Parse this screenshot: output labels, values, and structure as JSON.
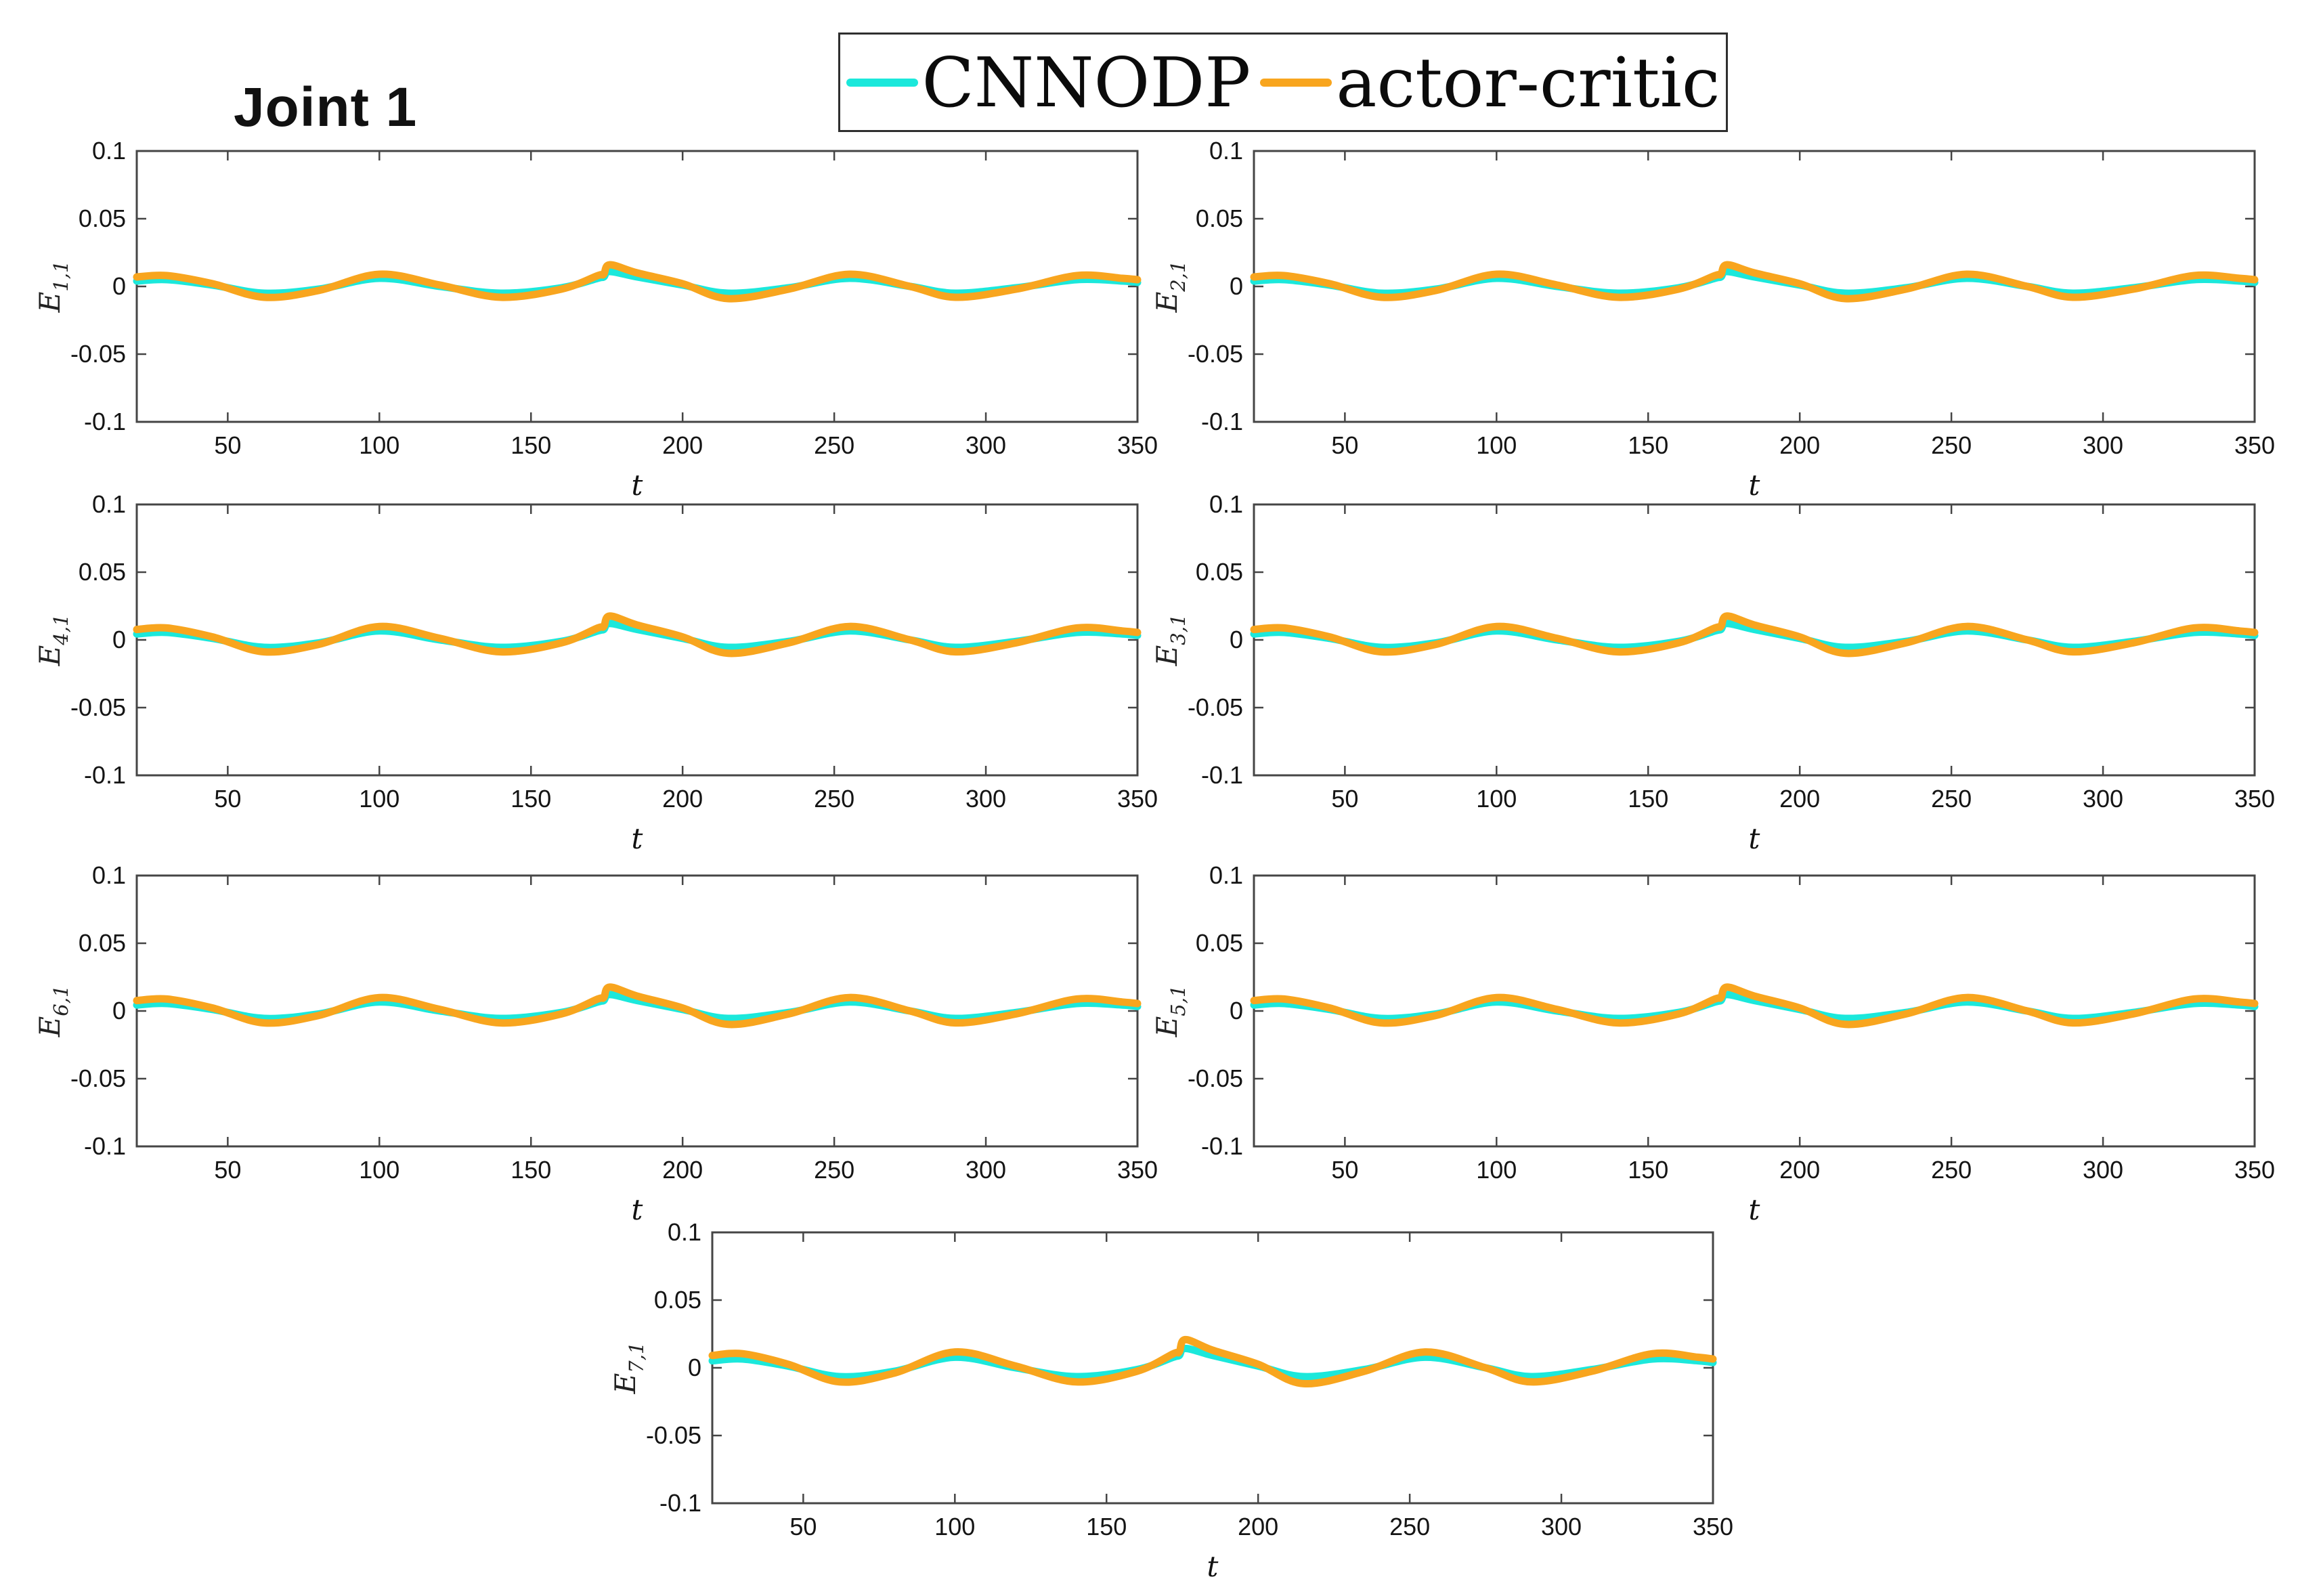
{
  "title": "Joint 1",
  "legend": {
    "items": [
      {
        "label": "CNNODP",
        "color": "#1BE8DB"
      },
      {
        "label": "actor-critic",
        "color": "#F8A51E"
      }
    ]
  },
  "axes": {
    "xlabel": "t",
    "x_range": [
      20,
      350
    ],
    "x_ticks": [
      50,
      100,
      150,
      200,
      250,
      300,
      350
    ],
    "y_range": [
      -0.1,
      0.1
    ],
    "y_ticks": [
      0.1,
      0.05,
      0,
      -0.05,
      -0.1
    ],
    "y_tick_labels": [
      "0.1",
      "0.05",
      "0",
      "-0.05",
      "-0.1"
    ],
    "grid": false,
    "box": true,
    "spine_color": "#454545",
    "tick_label_color": "#141414"
  },
  "chart_data": [
    {
      "type": "line",
      "ylabel_main": "E",
      "ylabel_sub": "1,1",
      "x": [
        20,
        30,
        45,
        62,
        80,
        100,
        120,
        140,
        160,
        172,
        174,
        176,
        185,
        200,
        215,
        235,
        255,
        275,
        290,
        310,
        330,
        345,
        350
      ],
      "series": [
        {
          "name": "CNNODP",
          "color": "#1BE8DB",
          "values": [
            0.004,
            0.005,
            0.001,
            -0.005,
            -0.002,
            0.006,
            0.0,
            -0.005,
            -0.001,
            0.006,
            0.007,
            0.011,
            0.007,
            0.001,
            -0.005,
            -0.001,
            0.006,
            0.0,
            -0.005,
            -0.001,
            0.005,
            0.004,
            0.003
          ]
        },
        {
          "name": "actor-critic",
          "color": "#F8A51E",
          "values": [
            0.007,
            0.008,
            0.002,
            -0.008,
            -0.003,
            0.009,
            0.001,
            -0.008,
            -0.002,
            0.008,
            0.009,
            0.016,
            0.01,
            0.002,
            -0.009,
            -0.002,
            0.009,
            0.0,
            -0.008,
            -0.002,
            0.008,
            0.006,
            0.005
          ]
        }
      ]
    },
    {
      "type": "line",
      "ylabel_main": "E",
      "ylabel_sub": "2,1",
      "x": [
        20,
        30,
        45,
        62,
        80,
        100,
        120,
        140,
        160,
        172,
        174,
        176,
        185,
        200,
        215,
        235,
        255,
        275,
        290,
        310,
        330,
        345,
        350
      ],
      "series": [
        {
          "name": "CNNODP",
          "color": "#1BE8DB",
          "values": [
            0.004,
            0.005,
            0.001,
            -0.005,
            -0.002,
            0.006,
            0.0,
            -0.005,
            -0.001,
            0.006,
            0.007,
            0.011,
            0.007,
            0.001,
            -0.005,
            -0.001,
            0.006,
            0.0,
            -0.005,
            -0.001,
            0.005,
            0.004,
            0.003
          ]
        },
        {
          "name": "actor-critic",
          "color": "#F8A51E",
          "values": [
            0.007,
            0.008,
            0.002,
            -0.008,
            -0.003,
            0.009,
            0.001,
            -0.008,
            -0.002,
            0.008,
            0.009,
            0.016,
            0.01,
            0.002,
            -0.009,
            -0.002,
            0.009,
            0.0,
            -0.008,
            -0.002,
            0.008,
            0.006,
            0.005
          ]
        }
      ]
    },
    {
      "type": "line",
      "ylabel_main": "E",
      "ylabel_sub": "4,1",
      "x": [
        20,
        30,
        45,
        62,
        80,
        100,
        120,
        140,
        160,
        172,
        174,
        176,
        185,
        200,
        215,
        235,
        255,
        275,
        290,
        310,
        330,
        345,
        350
      ],
      "series": [
        {
          "name": "CNNODP",
          "color": "#1BE8DB",
          "values": [
            0.0044,
            0.0055,
            0.0011,
            -0.0055,
            -0.0022,
            0.0066,
            0.0,
            -0.0055,
            -0.0011,
            0.0066,
            0.0077,
            0.0121,
            0.0077,
            0.0011,
            -0.0055,
            -0.0011,
            0.0066,
            0.0,
            -0.0055,
            -0.0011,
            0.0055,
            0.0044,
            0.0033
          ]
        },
        {
          "name": "actor-critic",
          "color": "#F8A51E",
          "values": [
            0.0077,
            0.0088,
            0.0022,
            -0.0088,
            -0.0033,
            0.0099,
            0.0011,
            -0.0088,
            -0.0022,
            0.0088,
            0.0099,
            0.0176,
            0.011,
            0.0022,
            -0.0099,
            -0.0022,
            0.0099,
            0.0,
            -0.0088,
            -0.0022,
            0.0088,
            0.0066,
            0.0055
          ]
        }
      ]
    },
    {
      "type": "line",
      "ylabel_main": "E",
      "ylabel_sub": "3,1",
      "x": [
        20,
        30,
        45,
        62,
        80,
        100,
        120,
        140,
        160,
        172,
        174,
        176,
        185,
        200,
        215,
        235,
        255,
        275,
        290,
        310,
        330,
        345,
        350
      ],
      "series": [
        {
          "name": "CNNODP",
          "color": "#1BE8DB",
          "values": [
            0.0044,
            0.0055,
            0.0011,
            -0.0055,
            -0.0022,
            0.0066,
            0.0,
            -0.0055,
            -0.0011,
            0.0066,
            0.0077,
            0.0121,
            0.0077,
            0.0011,
            -0.0055,
            -0.0011,
            0.0066,
            0.0,
            -0.0055,
            -0.0011,
            0.0055,
            0.0044,
            0.0033
          ]
        },
        {
          "name": "actor-critic",
          "color": "#F8A51E",
          "values": [
            0.0077,
            0.0088,
            0.0022,
            -0.0088,
            -0.0033,
            0.0099,
            0.0011,
            -0.0088,
            -0.0022,
            0.0088,
            0.0099,
            0.0176,
            0.011,
            0.0022,
            -0.0099,
            -0.0022,
            0.0099,
            0.0,
            -0.0088,
            -0.0022,
            0.0088,
            0.0066,
            0.0055
          ]
        }
      ]
    },
    {
      "type": "line",
      "ylabel_main": "E",
      "ylabel_sub": "6,1",
      "x": [
        20,
        30,
        45,
        62,
        80,
        100,
        120,
        140,
        160,
        172,
        174,
        176,
        185,
        200,
        215,
        235,
        255,
        275,
        290,
        310,
        330,
        345,
        350
      ],
      "series": [
        {
          "name": "CNNODP",
          "color": "#1BE8DB",
          "values": [
            0.0044,
            0.0055,
            0.0011,
            -0.0055,
            -0.0022,
            0.0066,
            0.0,
            -0.0055,
            -0.0011,
            0.0066,
            0.0077,
            0.0121,
            0.0077,
            0.0011,
            -0.0055,
            -0.0011,
            0.0066,
            0.0,
            -0.0055,
            -0.0011,
            0.0055,
            0.0044,
            0.0033
          ]
        },
        {
          "name": "actor-critic",
          "color": "#F8A51E",
          "values": [
            0.0077,
            0.0088,
            0.0022,
            -0.0088,
            -0.0033,
            0.0099,
            0.0011,
            -0.0088,
            -0.0022,
            0.0088,
            0.0099,
            0.0176,
            0.011,
            0.0022,
            -0.0099,
            -0.0022,
            0.0099,
            0.0,
            -0.0088,
            -0.0022,
            0.0088,
            0.0066,
            0.0055
          ]
        }
      ]
    },
    {
      "type": "line",
      "ylabel_main": "E",
      "ylabel_sub": "5,1",
      "x": [
        20,
        30,
        45,
        62,
        80,
        100,
        120,
        140,
        160,
        172,
        174,
        176,
        185,
        200,
        215,
        235,
        255,
        275,
        290,
        310,
        330,
        345,
        350
      ],
      "series": [
        {
          "name": "CNNODP",
          "color": "#1BE8DB",
          "values": [
            0.0044,
            0.0055,
            0.0011,
            -0.0055,
            -0.0022,
            0.0066,
            0.0,
            -0.0055,
            -0.0011,
            0.0066,
            0.0077,
            0.0121,
            0.0077,
            0.0011,
            -0.0055,
            -0.0011,
            0.0066,
            0.0,
            -0.0055,
            -0.0011,
            0.0055,
            0.0044,
            0.0033
          ]
        },
        {
          "name": "actor-critic",
          "color": "#F8A51E",
          "values": [
            0.0077,
            0.0088,
            0.0022,
            -0.0088,
            -0.0033,
            0.0099,
            0.0011,
            -0.0088,
            -0.0022,
            0.0088,
            0.0099,
            0.0176,
            0.011,
            0.0022,
            -0.0099,
            -0.0022,
            0.0099,
            0.0,
            -0.0088,
            -0.0022,
            0.0088,
            0.0066,
            0.0055
          ]
        }
      ]
    },
    {
      "type": "line",
      "ylabel_main": "E",
      "ylabel_sub": "7,1",
      "x": [
        20,
        30,
        45,
        62,
        80,
        100,
        120,
        140,
        160,
        172,
        174,
        176,
        185,
        200,
        215,
        235,
        255,
        275,
        290,
        310,
        330,
        345,
        350
      ],
      "series": [
        {
          "name": "CNNODP",
          "color": "#1BE8DB",
          "values": [
            0.0052,
            0.0065,
            0.0013,
            -0.0065,
            -0.0026,
            0.0078,
            0.0,
            -0.0065,
            -0.0013,
            0.0078,
            0.0091,
            0.0143,
            0.0091,
            0.0013,
            -0.0065,
            -0.0013,
            0.0078,
            0.0,
            -0.0065,
            -0.0013,
            0.0065,
            0.0052,
            0.0039
          ]
        },
        {
          "name": "actor-critic",
          "color": "#F8A51E",
          "values": [
            0.0091,
            0.0104,
            0.0026,
            -0.0104,
            -0.0039,
            0.0117,
            0.0013,
            -0.0104,
            -0.0026,
            0.0104,
            0.0117,
            0.0208,
            0.013,
            0.0026,
            -0.0117,
            -0.0026,
            0.0117,
            0.0,
            -0.0104,
            -0.0026,
            0.0104,
            0.0078,
            0.0065
          ]
        }
      ]
    }
  ]
}
